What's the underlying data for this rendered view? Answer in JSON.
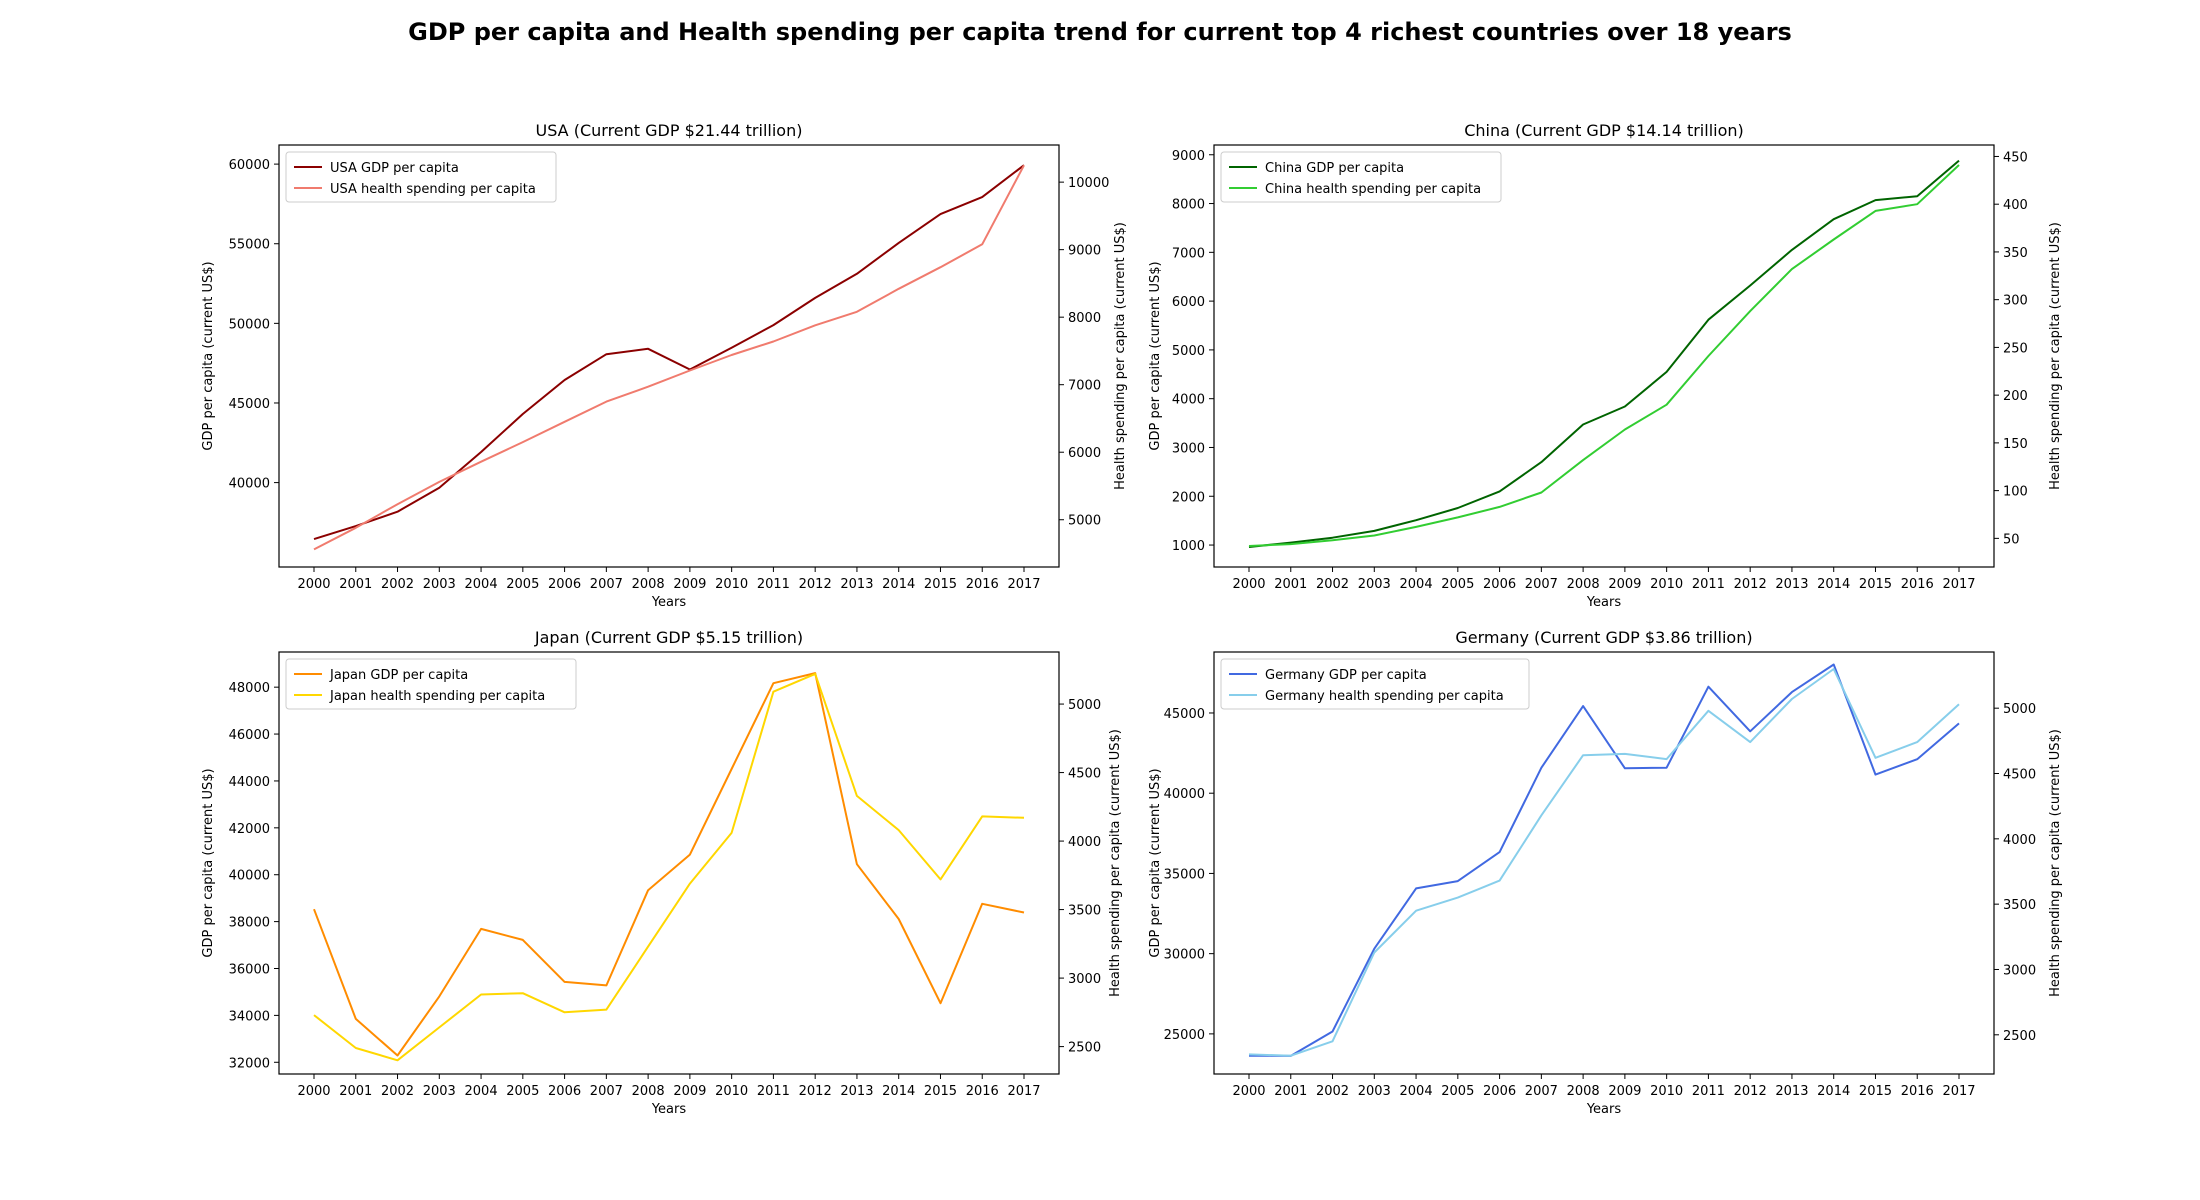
{
  "figure": {
    "title": "GDP per capita and Health spending per capita trend for current top 4 richest countries over 18 years"
  },
  "chart_data": [
    {
      "type": "line",
      "title": "USA (Current GDP $21.44 trillion)",
      "xlabel": "Years",
      "ylabel_left": "GDP per capita (current US$)",
      "ylabel_right": "Health spending per capita (current US$)",
      "x": [
        2000,
        2001,
        2002,
        2003,
        2004,
        2005,
        2006,
        2007,
        2008,
        2009,
        2010,
        2011,
        2012,
        2013,
        2014,
        2015,
        2016,
        2017
      ],
      "ylim_left": [
        34700,
        61200
      ],
      "yticks_left": [
        40000,
        45000,
        50000,
        55000,
        60000
      ],
      "ylim_right": [
        4300,
        10550
      ],
      "yticks_right": [
        5000,
        6000,
        7000,
        8000,
        9000,
        10000
      ],
      "legend": "top-left",
      "series": [
        {
          "name": "USA GDP per capita",
          "axis": "left",
          "color": "#8b0000",
          "values": [
            36450,
            37270,
            38170,
            39680,
            41920,
            44310,
            46440,
            48060,
            48400,
            47100,
            48470,
            49890,
            51600,
            53110,
            55050,
            56860,
            57930,
            59930
          ]
        },
        {
          "name": "USA health spending per capita",
          "axis": "right",
          "color": "#f07b6e",
          "values": [
            4560,
            4880,
            5230,
            5560,
            5860,
            6150,
            6450,
            6750,
            6970,
            7210,
            7440,
            7640,
            7880,
            8080,
            8420,
            8740,
            9080,
            10250
          ]
        }
      ]
    },
    {
      "type": "line",
      "title": "China (Current GDP $14.14 trillion)",
      "xlabel": "Years",
      "ylabel_left": "GDP per capita (current US$)",
      "ylabel_right": "Health spending per capita (current US$)",
      "x": [
        2000,
        2001,
        2002,
        2003,
        2004,
        2005,
        2006,
        2007,
        2008,
        2009,
        2010,
        2011,
        2012,
        2013,
        2014,
        2015,
        2016,
        2017
      ],
      "ylim_left": [
        550,
        9200
      ],
      "yticks_left": [
        1000,
        2000,
        3000,
        4000,
        5000,
        6000,
        7000,
        8000,
        9000
      ],
      "ylim_right": [
        20,
        462
      ],
      "yticks_right": [
        50,
        100,
        150,
        200,
        250,
        300,
        350,
        400,
        450
      ],
      "legend": "top-left",
      "series": [
        {
          "name": "China GDP per capita",
          "axis": "left",
          "color": "#006400",
          "values": [
            960,
            1050,
            1150,
            1290,
            1510,
            1760,
            2100,
            2700,
            3470,
            3840,
            4550,
            5620,
            6320,
            7050,
            7680,
            8070,
            8150,
            8880
          ]
        },
        {
          "name": "China health spending per capita",
          "axis": "right",
          "color": "#32cd32",
          "values": [
            42,
            44,
            48,
            53,
            62,
            72,
            83,
            98,
            132,
            164,
            190,
            241,
            288,
            332,
            363,
            393,
            400,
            441
          ]
        }
      ]
    },
    {
      "type": "line",
      "title": "Japan (Current GDP $5.15 trillion)",
      "xlabel": "Years",
      "ylabel_left": "GDP per capita (current US$)",
      "ylabel_right": "Health spending per capita (current US$)",
      "x": [
        2000,
        2001,
        2002,
        2003,
        2004,
        2005,
        2006,
        2007,
        2008,
        2009,
        2010,
        2011,
        2012,
        2013,
        2014,
        2015,
        2016,
        2017
      ],
      "ylim_left": [
        31500,
        49500
      ],
      "yticks_left": [
        32000,
        34000,
        36000,
        38000,
        40000,
        42000,
        44000,
        46000,
        48000
      ],
      "ylim_right": [
        2300,
        5380
      ],
      "yticks_right": [
        2500,
        3000,
        3500,
        4000,
        4500,
        5000
      ],
      "legend": "top-left",
      "series": [
        {
          "name": "Japan GDP per capita",
          "axis": "left",
          "color": "#ff8c00",
          "values": [
            38530,
            33850,
            32290,
            34810,
            37690,
            37220,
            35430,
            35280,
            39340,
            40860,
            44510,
            48170,
            48600,
            40450,
            38110,
            34520,
            38760,
            38390
          ]
        },
        {
          "name": "Japan health spending per capita",
          "axis": "right",
          "color": "#ffd700",
          "values": [
            2730,
            2490,
            2400,
            2640,
            2880,
            2890,
            2750,
            2770,
            3230,
            3690,
            4060,
            5090,
            5220,
            4330,
            4080,
            3720,
            4180,
            4170
          ]
        }
      ]
    },
    {
      "type": "line",
      "title": "Germany (Current GDP $3.86 trillion)",
      "xlabel": "Years",
      "ylabel_left": "GDP per capita (current US$)",
      "ylabel_right": "Health spending per capita (current US$)",
      "x": [
        2000,
        2001,
        2002,
        2003,
        2004,
        2005,
        2006,
        2007,
        2008,
        2009,
        2010,
        2011,
        2012,
        2013,
        2014,
        2015,
        2016,
        2017
      ],
      "ylim_left": [
        22500,
        48800
      ],
      "yticks_left": [
        25000,
        30000,
        35000,
        40000,
        45000
      ],
      "ylim_right": [
        2200,
        5430
      ],
      "yticks_right": [
        2500,
        3000,
        3500,
        4000,
        4500,
        5000
      ],
      "legend": "top-left",
      "series": [
        {
          "name": "Germany GDP per capita",
          "axis": "left",
          "color": "#4169e1",
          "values": [
            23640,
            23630,
            25150,
            30310,
            34070,
            34520,
            36330,
            41590,
            45430,
            41550,
            41590,
            46640,
            43860,
            46300,
            48020,
            41160,
            42120,
            44350
          ]
        },
        {
          "name": "Germany health spending per capita",
          "axis": "right",
          "color": "#87ceeb",
          "values": [
            2350,
            2340,
            2450,
            3130,
            3450,
            3550,
            3680,
            4180,
            4640,
            4650,
            4610,
            4980,
            4740,
            5070,
            5300,
            4620,
            4740,
            5030
          ]
        }
      ]
    }
  ]
}
